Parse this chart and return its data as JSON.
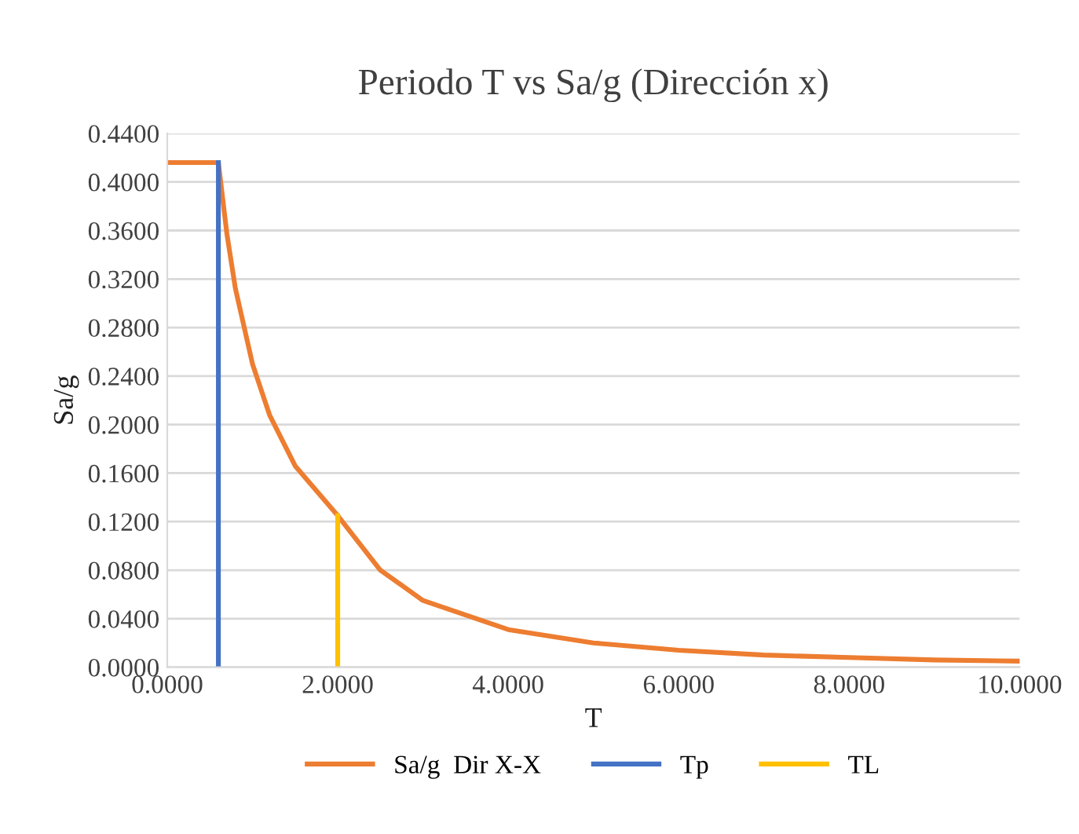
{
  "chart_data": {
    "type": "line",
    "title": "Periodo T vs Sa/g (Dirección x)",
    "xlabel": "T",
    "ylabel": "Sa/g",
    "xlim": [
      0,
      10
    ],
    "ylim": [
      0,
      0.44
    ],
    "xticks": [
      {
        "value": 0,
        "label": "0.0000"
      },
      {
        "value": 2,
        "label": "2.0000"
      },
      {
        "value": 4,
        "label": "4.0000"
      },
      {
        "value": 6,
        "label": "6.0000"
      },
      {
        "value": 8,
        "label": "8.0000"
      },
      {
        "value": 10,
        "label": "10.0000"
      }
    ],
    "yticks": [
      {
        "value": 0,
        "label": "0.0000"
      },
      {
        "value": 0.04,
        "label": "0.0400"
      },
      {
        "value": 0.08,
        "label": "0.0800"
      },
      {
        "value": 0.12,
        "label": "0.1200"
      },
      {
        "value": 0.16,
        "label": "0.1600"
      },
      {
        "value": 0.2,
        "label": "0.2000"
      },
      {
        "value": 0.24,
        "label": "0.2400"
      },
      {
        "value": 0.28,
        "label": "0.2800"
      },
      {
        "value": 0.32,
        "label": "0.3200"
      },
      {
        "value": 0.36,
        "label": "0.3600"
      },
      {
        "value": 0.4,
        "label": "0.4000"
      },
      {
        "value": 0.44,
        "label": "0.4400"
      }
    ],
    "grid": "y",
    "legend": "bottom",
    "marker": "none",
    "line_style": "solid",
    "series": [
      {
        "name": "Sa/g  Dir X-X",
        "color": "#ed7d31",
        "x": [
          0,
          0.6,
          0.7,
          0.8,
          1.0,
          1.2,
          1.5,
          2.0,
          2.5,
          3.0,
          4.0,
          5.0,
          6.0,
          7.0,
          8.0,
          9.0,
          10.0
        ],
        "values": [
          0.416,
          0.416,
          0.357,
          0.312,
          0.25,
          0.208,
          0.166,
          0.125,
          0.08,
          0.055,
          0.031,
          0.02,
          0.014,
          0.01,
          0.008,
          0.006,
          0.005
        ]
      },
      {
        "name": "Tp",
        "color": "#4472c4",
        "x": [
          0.6,
          0.6
        ],
        "values": [
          0,
          0.416
        ]
      },
      {
        "name": "TL",
        "color": "#ffc000",
        "x": [
          2.0,
          2.0
        ],
        "values": [
          0,
          0.125
        ]
      }
    ]
  }
}
